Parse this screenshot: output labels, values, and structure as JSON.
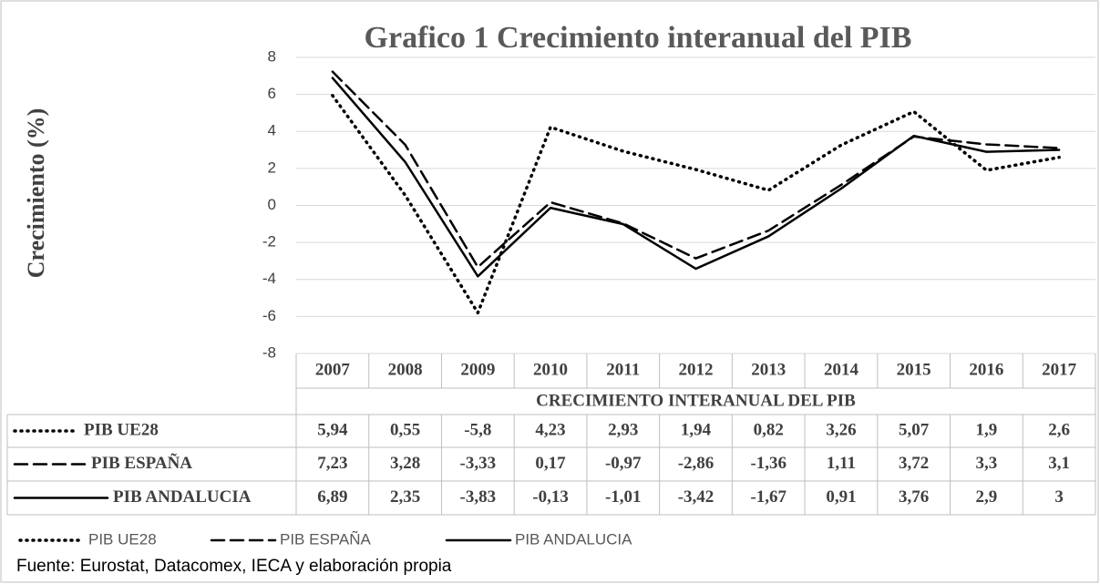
{
  "chart_data": {
    "type": "line",
    "title": "Grafico 1 Crecimiento interanual del PIB",
    "y_label": "Crecimiento (%)",
    "x_label": "CRECIMIENTO INTERANUAL DEL PIB",
    "source": "Fuente: Eurostat, Datacomex, IECA y elaboración propia",
    "categories": [
      "2007",
      "2008",
      "2009",
      "2010",
      "2011",
      "2012",
      "2013",
      "2014",
      "2015",
      "2016",
      "2017"
    ],
    "ylim": [
      -8,
      8
    ],
    "yticks": [
      -8,
      -6,
      -4,
      -2,
      0,
      2,
      4,
      6,
      8
    ],
    "grid": true,
    "legend": "bottom",
    "series": [
      {
        "name": "PIB UE28",
        "color": "#000000",
        "dash": "dotted",
        "values": [
          5.94,
          0.55,
          -5.8,
          4.23,
          2.93,
          1.94,
          0.82,
          3.26,
          5.07,
          1.9,
          2.6
        ],
        "value_labels": [
          "5,94",
          "0,55",
          "-5,8",
          "4,23",
          "2,93",
          "1,94",
          "0,82",
          "3,26",
          "5,07",
          "1,9",
          "2,6"
        ]
      },
      {
        "name": "PIB ESPAÑA",
        "color": "#000000",
        "dash": "dashed",
        "values": [
          7.23,
          3.28,
          -3.33,
          0.17,
          -0.97,
          -2.86,
          -1.36,
          1.11,
          3.72,
          3.3,
          3.1
        ],
        "value_labels": [
          "7,23",
          "3,28",
          "-3,33",
          "0,17",
          "-0,97",
          "-2,86",
          "-1,36",
          "1,11",
          "3,72",
          "3,3",
          "3,1"
        ]
      },
      {
        "name": "PIB ANDALUCIA",
        "color": "#000000",
        "dash": "solid",
        "values": [
          6.89,
          2.35,
          -3.83,
          -0.13,
          -1.01,
          -3.42,
          -1.67,
          0.91,
          3.76,
          2.9,
          3
        ],
        "value_labels": [
          "6,89",
          "2,35",
          "-3,83",
          "-0,13",
          "-1,01",
          "-3,42",
          "-1,67",
          "0,91",
          "3,76",
          "2,9",
          "3"
        ]
      }
    ]
  }
}
